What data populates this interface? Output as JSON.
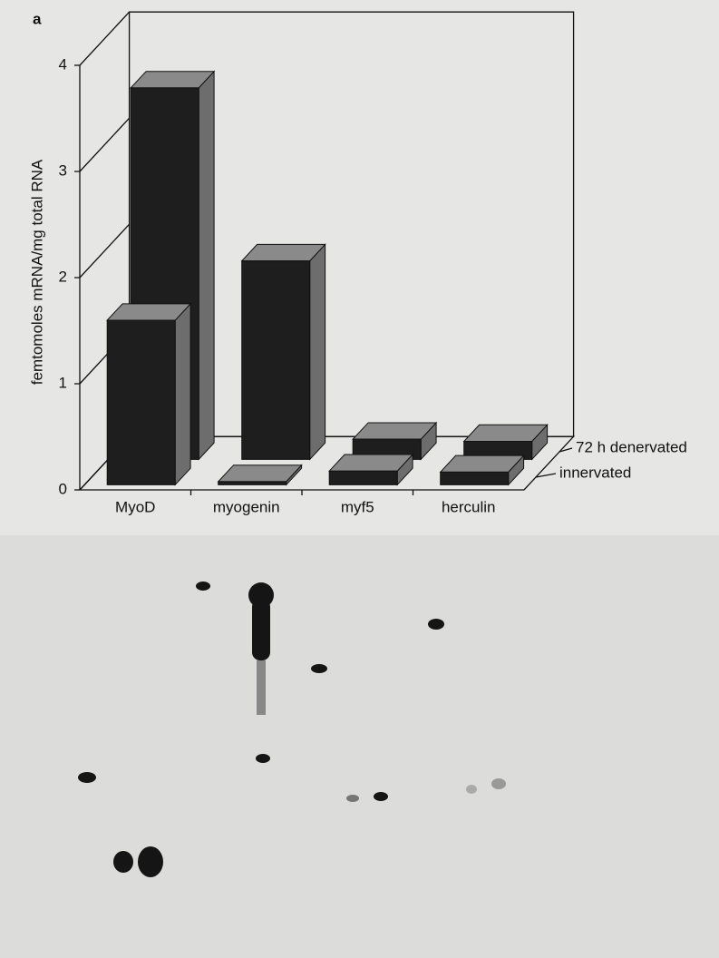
{
  "panel_label": "a",
  "chart_data": {
    "type": "bar3d",
    "y_label": "femtomoles mRNA/mg total RNA",
    "categories": [
      "MyoD",
      "myogenin",
      "myf5",
      "herculin"
    ],
    "series": [
      {
        "name": "innervated",
        "color": "#1e1e1e",
        "values": [
          1.55,
          0.03,
          0.13,
          0.12
        ]
      },
      {
        "name": "72 h denervated",
        "color": "#1e1e1e",
        "values": [
          3.5,
          1.87,
          0.19,
          0.17
        ]
      }
    ],
    "ylim": [
      0,
      4
    ],
    "yticks": [
      0,
      1,
      2,
      3,
      4
    ],
    "grid": true
  }
}
